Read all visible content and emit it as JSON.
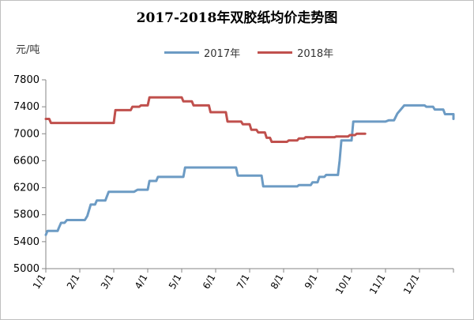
{
  "chart_data": {
    "type": "line",
    "title": "2017-2018年双胶纸均价走势图",
    "ylabel": "元/吨",
    "xlabel": "",
    "ylim": [
      5000,
      7800
    ],
    "yticks": [
      5000,
      5400,
      5800,
      6200,
      6600,
      7000,
      7400,
      7800
    ],
    "xtick_labels": [
      "1/1",
      "2/1",
      "3/1",
      "4/1",
      "5/1",
      "6/1",
      "7/1",
      "8/1",
      "9/1",
      "10/1",
      "11/1",
      "12/1"
    ],
    "x_range_months": [
      0,
      12
    ],
    "grid": false,
    "legend_position": "top",
    "series": [
      {
        "name": "2017年",
        "color": "#6c9bc4",
        "points": [
          [
            0.0,
            5500
          ],
          [
            0.05,
            5560
          ],
          [
            0.35,
            5560
          ],
          [
            0.38,
            5600
          ],
          [
            0.45,
            5680
          ],
          [
            0.55,
            5680
          ],
          [
            0.62,
            5720
          ],
          [
            1.15,
            5720
          ],
          [
            1.22,
            5780
          ],
          [
            1.32,
            5950
          ],
          [
            1.45,
            5950
          ],
          [
            1.5,
            6010
          ],
          [
            1.75,
            6010
          ],
          [
            1.85,
            6140
          ],
          [
            2.6,
            6140
          ],
          [
            2.7,
            6170
          ],
          [
            3.0,
            6170
          ],
          [
            3.05,
            6300
          ],
          [
            3.25,
            6300
          ],
          [
            3.3,
            6360
          ],
          [
            4.05,
            6360
          ],
          [
            4.1,
            6500
          ],
          [
            5.6,
            6500
          ],
          [
            5.65,
            6380
          ],
          [
            6.35,
            6380
          ],
          [
            6.4,
            6220
          ],
          [
            7.4,
            6220
          ],
          [
            7.45,
            6240
          ],
          [
            7.8,
            6240
          ],
          [
            7.85,
            6280
          ],
          [
            8.0,
            6280
          ],
          [
            8.05,
            6360
          ],
          [
            8.2,
            6360
          ],
          [
            8.25,
            6390
          ],
          [
            8.6,
            6390
          ],
          [
            8.65,
            6600
          ],
          [
            8.7,
            6900
          ],
          [
            9.0,
            6900
          ],
          [
            9.05,
            7180
          ],
          [
            10.0,
            7180
          ],
          [
            10.1,
            7200
          ],
          [
            10.25,
            7200
          ],
          [
            10.35,
            7300
          ],
          [
            10.45,
            7360
          ],
          [
            10.55,
            7420
          ],
          [
            11.15,
            7420
          ],
          [
            11.2,
            7400
          ],
          [
            11.4,
            7400
          ],
          [
            11.45,
            7360
          ],
          [
            11.7,
            7360
          ],
          [
            11.75,
            7290
          ],
          [
            12.3,
            7290
          ],
          [
            12.35,
            7220
          ],
          [
            12.7,
            7220
          ]
        ]
      },
      {
        "name": "2018年",
        "color": "#c0504d",
        "points": [
          [
            0.0,
            7220
          ],
          [
            0.1,
            7220
          ],
          [
            0.15,
            7160
          ],
          [
            2.0,
            7160
          ],
          [
            2.05,
            7350
          ],
          [
            2.5,
            7350
          ],
          [
            2.55,
            7400
          ],
          [
            2.75,
            7400
          ],
          [
            2.8,
            7420
          ],
          [
            3.0,
            7420
          ],
          [
            3.05,
            7540
          ],
          [
            4.0,
            7540
          ],
          [
            4.05,
            7480
          ],
          [
            4.3,
            7480
          ],
          [
            4.35,
            7420
          ],
          [
            4.8,
            7420
          ],
          [
            4.85,
            7320
          ],
          [
            5.3,
            7320
          ],
          [
            5.35,
            7180
          ],
          [
            5.75,
            7180
          ],
          [
            5.8,
            7140
          ],
          [
            6.0,
            7140
          ],
          [
            6.05,
            7060
          ],
          [
            6.2,
            7060
          ],
          [
            6.25,
            7020
          ],
          [
            6.45,
            7020
          ],
          [
            6.5,
            6940
          ],
          [
            6.6,
            6940
          ],
          [
            6.65,
            6880
          ],
          [
            7.1,
            6880
          ],
          [
            7.15,
            6900
          ],
          [
            7.4,
            6900
          ],
          [
            7.45,
            6930
          ],
          [
            7.6,
            6930
          ],
          [
            7.65,
            6950
          ],
          [
            8.5,
            6950
          ],
          [
            8.55,
            6960
          ],
          [
            8.9,
            6960
          ],
          [
            8.95,
            6980
          ],
          [
            9.1,
            6980
          ],
          [
            9.15,
            7000
          ],
          [
            9.4,
            7000
          ]
        ]
      }
    ]
  }
}
